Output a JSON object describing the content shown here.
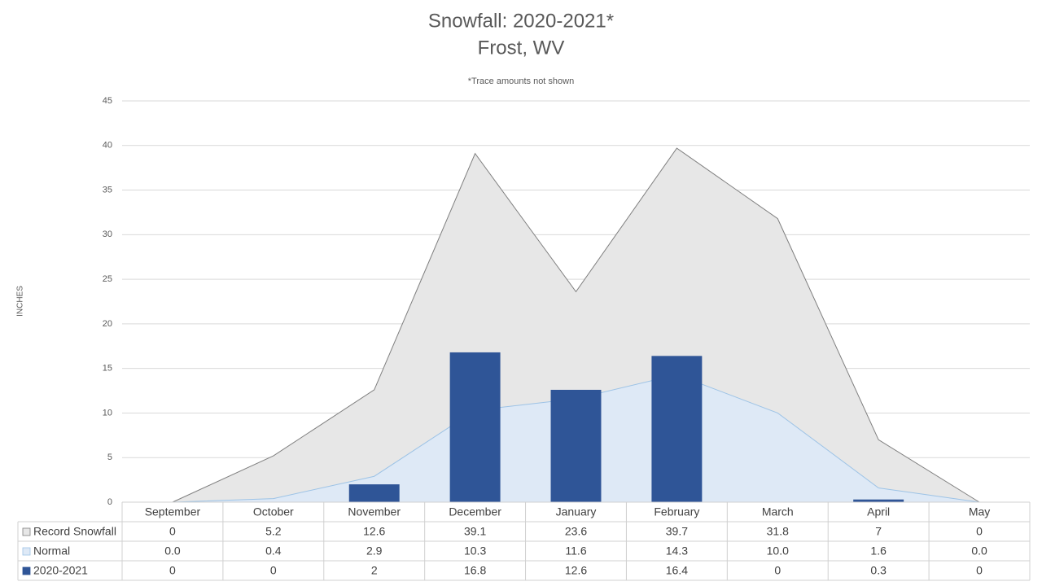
{
  "chart_data": {
    "type": "combo",
    "title": "Snowfall: 2020-2021*",
    "subtitle": "Frost, WV",
    "annotation": "*Trace amounts not shown",
    "y_label": "INCHES",
    "categories": [
      "September",
      "October",
      "November",
      "December",
      "January",
      "February",
      "March",
      "April",
      "May"
    ],
    "series": [
      {
        "name": "Record Snowfall",
        "type": "area",
        "color": "#e7e7e7",
        "stroke": "#7f7f7f",
        "values": [
          0,
          5.2,
          12.6,
          39.1,
          23.6,
          39.7,
          31.8,
          7,
          0
        ]
      },
      {
        "name": "Normal",
        "type": "area",
        "color": "#dee9f6",
        "stroke": "#9dc3e6",
        "values": [
          0,
          0.4,
          2.9,
          10.3,
          11.6,
          14.3,
          10,
          1.6,
          0
        ],
        "value_labels": [
          "0.0",
          "0.4",
          "2.9",
          "10.3",
          "11.6",
          "14.3",
          "10.0",
          "1.6",
          "0.0"
        ]
      },
      {
        "name": "2020-2021",
        "type": "bar",
        "color": "#2f5597",
        "values": [
          0,
          0,
          2,
          16.8,
          12.6,
          16.4,
          0,
          0.3,
          0
        ]
      }
    ],
    "ylim": [
      0,
      45
    ],
    "yticks": [
      0,
      5,
      10,
      15,
      20,
      25,
      30,
      35,
      40,
      45
    ],
    "grid": true,
    "data_table": true
  }
}
